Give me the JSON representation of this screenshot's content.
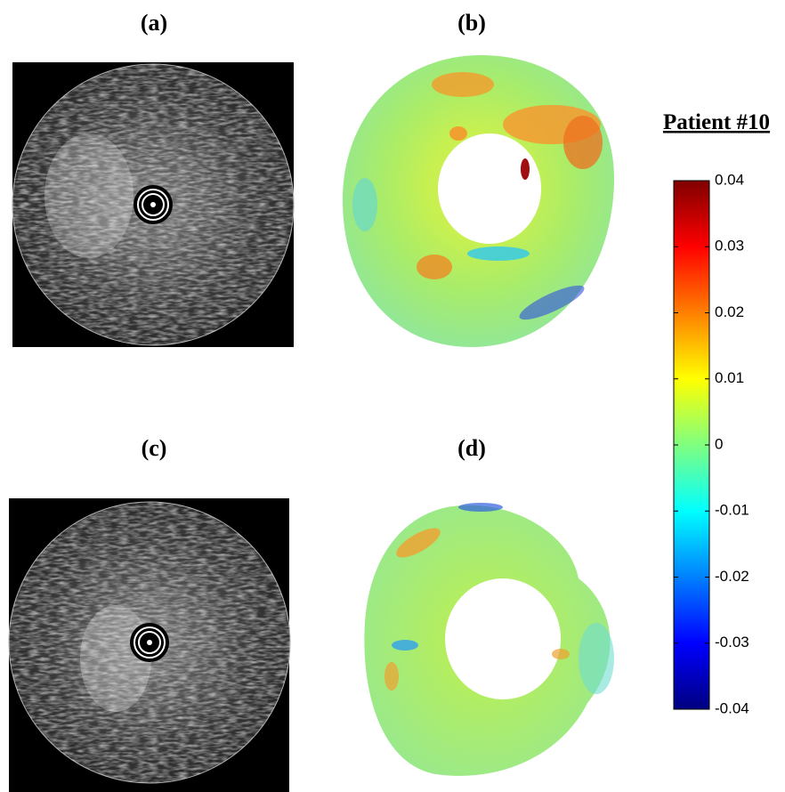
{
  "panel_labels": [
    "(a)",
    "(b)",
    "(c)",
    "(d)"
  ],
  "chart_data": {
    "type": "colorbar",
    "title": "Patient #10",
    "colormap": "jet",
    "ylim": [
      -0.04,
      0.04
    ],
    "yticks": [
      0.04,
      0.03,
      0.02,
      0.01,
      0,
      -0.01,
      -0.02,
      -0.03,
      -0.04
    ]
  }
}
